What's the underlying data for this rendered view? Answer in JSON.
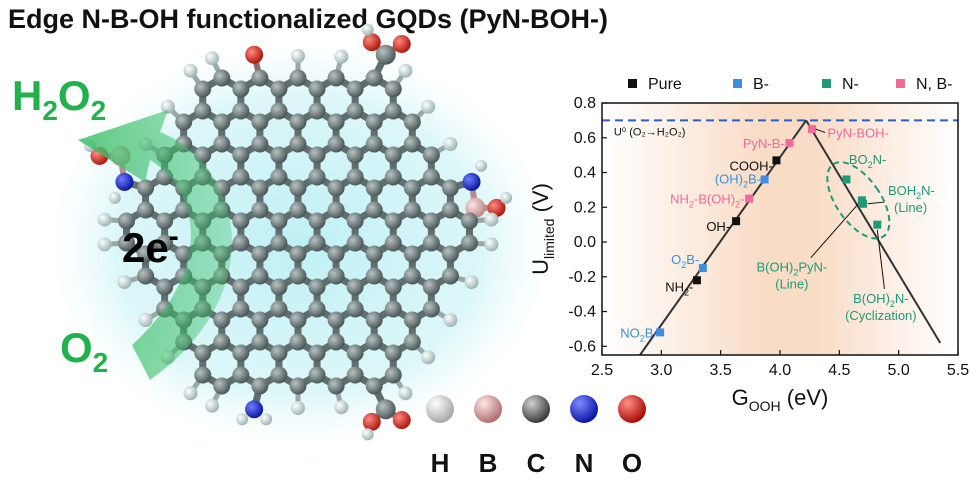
{
  "title": "Edge N-B-OH functionalized GQDs (PyN-BOH-)",
  "scheme": {
    "product_main": "H",
    "product_sub1": "2",
    "product_mid": "O",
    "product_sub2": "2",
    "electrons_main": "2e",
    "electrons_sup": "-",
    "reactant_main": "O",
    "reactant_sub": "2"
  },
  "atom_legend": [
    {
      "symbol": "H",
      "color": "#f2f2f2"
    },
    {
      "symbol": "B",
      "color": "#e8b4b4"
    },
    {
      "symbol": "C",
      "color": "#707878"
    },
    {
      "symbol": "N",
      "color": "#1f2fd6"
    },
    {
      "symbol": "O",
      "color": "#e01010"
    }
  ],
  "chart_data": {
    "type": "scatter",
    "xlabel": {
      "main": "G",
      "sub": "OOH",
      "rest": " (eV)"
    },
    "ylabel": {
      "main": "U",
      "sub": "limited",
      "rest": " (V)"
    },
    "xlim": [
      2.5,
      5.5
    ],
    "ylim": [
      -0.65,
      0.8
    ],
    "x_ticks": [
      "2.5",
      "3.0",
      "3.5",
      "4.0",
      "4.5",
      "5.0",
      "5.5"
    ],
    "y_ticks": [
      "-0.6",
      "-0.4",
      "-0.2",
      "0.0",
      "0.2",
      "0.4",
      "0.6",
      "0.8"
    ],
    "legend": {
      "placement": "top",
      "entries": [
        {
          "label": "Pure",
          "color": "#111111"
        },
        {
          "label": "B-",
          "color": "#3b8ee0"
        },
        {
          "label": "N-",
          "color": "#1e9a78"
        },
        {
          "label": "N, B-",
          "color": "#f06a9a"
        }
      ]
    },
    "reference_line": {
      "y": 0.7,
      "label": "U⁰ (O₂→H₂O₂)",
      "color": "#2a5fc8"
    },
    "volcano_peak": {
      "x": 4.22,
      "y": 0.7
    },
    "points": [
      {
        "label": "NO₂B-",
        "series": "B-",
        "x": 2.99,
        "y": -0.52
      },
      {
        "label": "NH₂-",
        "series": "Pure",
        "x": 3.3,
        "y": -0.22
      },
      {
        "label": "O₂B-",
        "series": "B-",
        "x": 3.35,
        "y": -0.15
      },
      {
        "label": "OH-",
        "series": "Pure",
        "x": 3.63,
        "y": 0.12
      },
      {
        "label": "NH₂-B(OH)₂-",
        "series": "N, B-",
        "x": 3.74,
        "y": 0.25
      },
      {
        "label": "(OH)₂B-",
        "series": "B-",
        "x": 3.87,
        "y": 0.36
      },
      {
        "label": "COOH-",
        "series": "Pure",
        "x": 3.97,
        "y": 0.47
      },
      {
        "label": "PyN-B-",
        "series": "N, B-",
        "x": 4.08,
        "y": 0.57
      },
      {
        "label": "PyN-BOH-",
        "series": "N, B-",
        "x": 4.27,
        "y": 0.65
      },
      {
        "label": "BO₂N-",
        "series": "N-",
        "x": 4.56,
        "y": 0.36
      },
      {
        "label": "BOH₂N- (Line)",
        "series": "N-",
        "x": 4.7,
        "y": 0.22
      },
      {
        "label": "B(OH)₂PyN- (Line)",
        "series": "N-",
        "x": 4.69,
        "y": 0.24
      },
      {
        "label": "B(OH)₂N- (Cyclization)",
        "series": "N-",
        "x": 4.82,
        "y": 0.1
      }
    ],
    "annotations": {
      "NO2B": {
        "main": "NO",
        "sub": "2",
        "rest": "B-"
      },
      "NH2": {
        "main": "NH",
        "sub": "2",
        "rest": "-"
      },
      "O2B": {
        "main": "O",
        "sub": "2",
        "rest": "B-"
      },
      "OH": "OH-",
      "NH2BOH2": {
        "a": "NH",
        "sub1": "2",
        "b": "-B(OH)",
        "sub2": "2",
        "c": "-"
      },
      "OH2B": {
        "a": "(OH)",
        "sub": "2",
        "b": "B-"
      },
      "COOH": "COOH-",
      "PyNB": "PyN-B-",
      "PyNBOH": "PyN-BOH-",
      "BO2N": {
        "a": "BO",
        "sub": "2",
        "b": "N-"
      },
      "BOH2N": {
        "a": "BOH",
        "sub": "2",
        "b": "N-",
        "line2": "(Line)"
      },
      "BOH2PyN": {
        "a": "B(OH)",
        "sub": "2",
        "b": "PyN-",
        "line2": "(Line)"
      },
      "BOH2Ncyc": {
        "a": "B(OH)",
        "sub": "2",
        "b": "N-",
        "line2": "(Cyclization)"
      }
    }
  }
}
